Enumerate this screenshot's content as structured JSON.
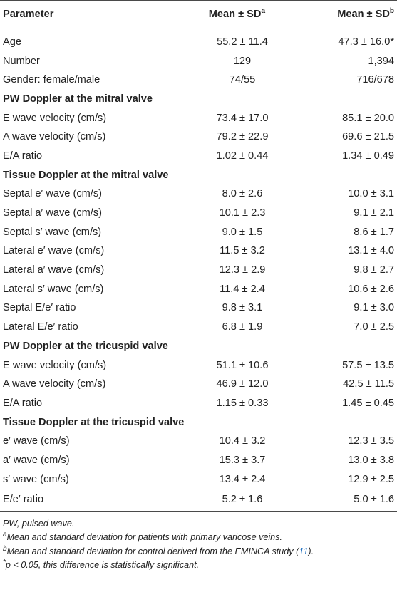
{
  "header": {
    "parameter": "Parameter",
    "mean_sd_a": "Mean ± SD",
    "sup_a": "a",
    "mean_sd_b": "Mean ± SD",
    "sup_b": "b"
  },
  "rows": [
    {
      "type": "data",
      "label": "Age",
      "a": "55.2 ± 11.4",
      "b": "47.3 ± 16.0*",
      "first": true
    },
    {
      "type": "data",
      "label": "Number",
      "a": "129",
      "b": "1,394"
    },
    {
      "type": "data",
      "label": "Gender: female/male",
      "a": "74/55",
      "b": "716/678"
    },
    {
      "type": "section",
      "label": "PW Doppler at the mitral valve"
    },
    {
      "type": "data",
      "label": "E wave velocity (cm/s)",
      "a": "73.4 ± 17.0",
      "b": "85.1 ± 20.0"
    },
    {
      "type": "data",
      "label": "A wave velocity (cm/s)",
      "a": "79.2 ± 22.9",
      "b": "69.6 ± 21.5"
    },
    {
      "type": "data",
      "label": "E/A ratio",
      "a": "1.02 ± 0.44",
      "b": "1.34 ± 0.49"
    },
    {
      "type": "section",
      "label": "Tissue Doppler at the mitral valve"
    },
    {
      "type": "data",
      "label": "Septal e′ wave (cm/s)",
      "a": "8.0 ± 2.6",
      "b": "10.0 ± 3.1"
    },
    {
      "type": "data",
      "label": "Septal a′ wave (cm/s)",
      "a": "10.1 ± 2.3",
      "b": "9.1 ± 2.1"
    },
    {
      "type": "data",
      "label": "Septal s′ wave (cm/s)",
      "a": "9.0 ± 1.5",
      "b": "8.6 ± 1.7"
    },
    {
      "type": "data",
      "label": "Lateral e′ wave (cm/s)",
      "a": "11.5 ± 3.2",
      "b": "13.1 ± 4.0"
    },
    {
      "type": "data",
      "label": "Lateral a′ wave (cm/s)",
      "a": "12.3 ± 2.9",
      "b": "9.8 ± 2.7"
    },
    {
      "type": "data",
      "label": "Lateral s′ wave (cm/s)",
      "a": "11.4 ± 2.4",
      "b": "10.6 ± 2.6"
    },
    {
      "type": "data",
      "label": "Septal E/e′ ratio",
      "a": "9.8 ± 3.1",
      "b": "9.1 ± 3.0"
    },
    {
      "type": "data",
      "label": "Lateral E/e′ ratio",
      "a": "6.8 ± 1.9",
      "b": "7.0 ± 2.5"
    },
    {
      "type": "section",
      "label": "PW Doppler at the tricuspid valve"
    },
    {
      "type": "data",
      "label": "E wave velocity (cm/s)",
      "a": "51.1 ± 10.6",
      "b": "57.5 ± 13.5"
    },
    {
      "type": "data",
      "label": "A wave velocity (cm/s)",
      "a": "46.9 ± 12.0",
      "b": "42.5 ± 11.5"
    },
    {
      "type": "data",
      "label": "E/A ratio",
      "a": "1.15 ± 0.33",
      "b": "1.45 ± 0.45"
    },
    {
      "type": "section",
      "label": "Tissue Doppler at the tricuspid valve"
    },
    {
      "type": "data",
      "label": "e′ wave (cm/s)",
      "a": "10.4 ± 3.2",
      "b": "12.3 ± 3.5"
    },
    {
      "type": "data",
      "label": "a′ wave (cm/s)",
      "a": "15.3 ± 3.7",
      "b": "13.0 ± 3.8"
    },
    {
      "type": "data",
      "label": "s′ wave (cm/s)",
      "a": "13.4 ± 2.4",
      "b": "12.9 ± 2.5"
    },
    {
      "type": "data",
      "label": "E/e′ ratio",
      "a": "5.2 ± 1.6",
      "b": "5.0 ± 1.6"
    }
  ],
  "footnotes": {
    "pw": "PW, pulsed wave.",
    "a_mark": "a",
    "a_text": "Mean and standard deviation for patients with primary varicose veins.",
    "b_mark": "b",
    "b_text": "Mean and standard deviation for control derived from the EMINCA study (",
    "b_ref": "11",
    "b_end": ").",
    "star_mark": "*",
    "star_text": "p < 0.05, this difference is statistically significant."
  }
}
